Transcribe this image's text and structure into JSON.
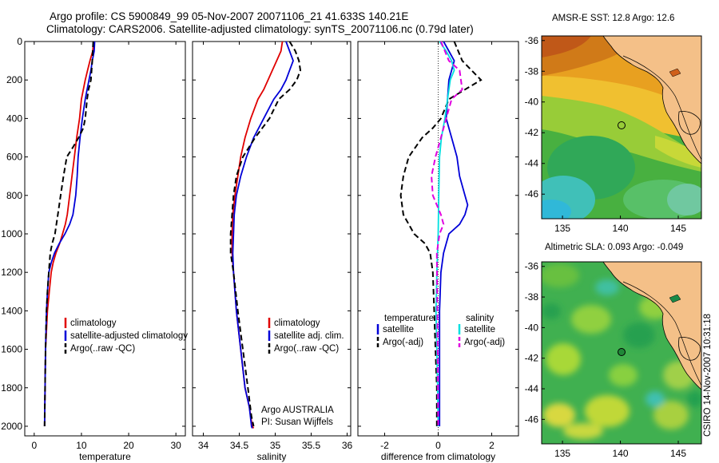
{
  "header": {
    "line1": "Argo profile: CS 5900849_99 05-Nov-2007 20071106_21 41.633S 140.21E",
    "line2": "Climatology: CARS2006. Satellite-adjusted climatology: synTS_20071106.nc (0.79d later)"
  },
  "colors": {
    "red": "#e00000",
    "blue": "#0000d8",
    "black": "#000000",
    "cyan": "#00e0e0",
    "magenta": "#e000e0"
  },
  "chart_data": [
    {
      "type": "line",
      "xlabel": "temperature",
      "xlim": [
        -2,
        32
      ],
      "ylim": [
        0,
        2050
      ],
      "xticks": [
        0,
        10,
        20,
        30
      ],
      "yticks": [
        0,
        200,
        400,
        600,
        800,
        1000,
        1200,
        1400,
        1600,
        1800,
        2000
      ],
      "legend": [
        "climatology",
        "satellite-adjusted climatology",
        "Argo(..raw -QC)"
      ],
      "series": [
        {
          "name": "climatology",
          "color": "red",
          "dash": false,
          "x": [
            12.6,
            12.4,
            11.8,
            11.3,
            10.8,
            10.4,
            10.0,
            9.6,
            9.0,
            8.5,
            8.0,
            7.5,
            7.0,
            6.6,
            6.0,
            5.4,
            4.6,
            4.0,
            3.6,
            3.2,
            2.8,
            2.6,
            2.4,
            2.3,
            2.2
          ],
          "y": [
            0,
            50,
            100,
            150,
            200,
            250,
            300,
            400,
            500,
            600,
            700,
            800,
            900,
            950,
            1000,
            1050,
            1100,
            1150,
            1200,
            1300,
            1400,
            1500,
            1600,
            1800,
            2000
          ]
        },
        {
          "name": "satellite-adjusted climatology",
          "color": "blue",
          "dash": false,
          "x": [
            12.8,
            12.7,
            12.3,
            12.0,
            11.6,
            11.2,
            10.8,
            10.2,
            9.7,
            9.3,
            9.1,
            8.8,
            8.2,
            7.5,
            6.5,
            5.3,
            4.3,
            3.6,
            3.1,
            2.8,
            2.6,
            2.4,
            2.3,
            2.2
          ],
          "y": [
            0,
            50,
            100,
            150,
            200,
            250,
            300,
            400,
            500,
            600,
            700,
            800,
            900,
            950,
            1000,
            1050,
            1100,
            1150,
            1200,
            1300,
            1400,
            1600,
            1800,
            2000
          ]
        },
        {
          "name": "Argo(..raw -QC)",
          "color": "black",
          "dash": true,
          "x": [
            12.5,
            12.3,
            12.0,
            11.5,
            11.2,
            10.8,
            10.4,
            9.4,
            8.2,
            6.9,
            6.2,
            5.6,
            5.0,
            4.4,
            3.8,
            3.4,
            3.1,
            2.8,
            2.6,
            2.4,
            2.3,
            2.2
          ],
          "y": [
            0,
            100,
            200,
            250,
            300,
            400,
            450,
            500,
            550,
            600,
            700,
            800,
            900,
            1000,
            1050,
            1100,
            1200,
            1300,
            1400,
            1600,
            1800,
            2000
          ]
        }
      ],
      "notes": []
    },
    {
      "type": "line",
      "xlabel": "salinity",
      "xlim": [
        33.85,
        36.05
      ],
      "ylim": [
        0,
        2050
      ],
      "xticks": [
        34,
        34.5,
        35,
        35.5,
        36
      ],
      "xtick_labels": [
        "34",
        "34.5",
        "35",
        "35.5",
        "36"
      ],
      "legend": [
        "climatology",
        "satellite adj. clim.",
        "Argo(..raw -QC)"
      ],
      "series": [
        {
          "name": "climatology",
          "color": "red",
          "dash": false,
          "x": [
            35.1,
            35.08,
            35.02,
            34.96,
            34.9,
            34.84,
            34.76,
            34.66,
            34.58,
            34.52,
            34.48,
            34.44,
            34.41,
            34.4,
            34.4,
            34.42,
            34.46,
            34.52,
            34.58,
            34.64,
            34.68,
            34.7
          ],
          "y": [
            0,
            50,
            100,
            150,
            200,
            250,
            300,
            400,
            500,
            600,
            700,
            800,
            900,
            1000,
            1100,
            1200,
            1400,
            1600,
            1800,
            1900,
            2000,
            2010
          ]
        },
        {
          "name": "satellite adj. clim.",
          "color": "blue",
          "dash": false,
          "x": [
            35.15,
            35.2,
            35.25,
            35.2,
            35.15,
            35.08,
            34.98,
            34.84,
            34.7,
            34.6,
            34.52,
            34.46,
            34.43,
            34.42,
            34.41,
            34.42,
            34.46,
            34.52,
            34.58,
            34.64,
            34.67,
            34.68
          ],
          "y": [
            0,
            50,
            100,
            150,
            200,
            250,
            300,
            400,
            500,
            600,
            700,
            800,
            900,
            1000,
            1100,
            1200,
            1400,
            1600,
            1800,
            1900,
            2000,
            2010
          ]
        },
        {
          "name": "Argo(..raw -QC)",
          "color": "black",
          "dash": true,
          "x": [
            35.2,
            35.28,
            35.33,
            35.35,
            35.3,
            35.2,
            35.05,
            34.92,
            34.72,
            34.55,
            34.46,
            34.42,
            34.4,
            34.38,
            34.38,
            34.42,
            34.48,
            34.55,
            34.62,
            34.67,
            34.7
          ],
          "y": [
            0,
            50,
            100,
            150,
            200,
            250,
            300,
            400,
            500,
            600,
            700,
            800,
            900,
            1000,
            1100,
            1200,
            1400,
            1600,
            1800,
            1950,
            2000
          ]
        }
      ],
      "notes": [
        "Argo AUSTRALIA",
        "PI: Susan Wijffels"
      ]
    },
    {
      "type": "line",
      "xlabel": "difference from climatology",
      "xlim": [
        -3,
        3
      ],
      "ylim": [
        0,
        2050
      ],
      "xticks": [
        -2,
        0,
        2
      ],
      "legend_headers": [
        "temperature",
        "salinity"
      ],
      "legend": [
        "satellite",
        "Argo(-adj)",
        "satellite",
        "Argo(-adj)"
      ],
      "series": [
        {
          "name": "satellite",
          "group": "temperature",
          "color": "blue",
          "dash": false,
          "x": [
            0.2,
            0.4,
            0.6,
            0.5,
            0.4,
            0.35,
            0.3,
            0.5,
            0.7,
            0.8,
            1.0,
            1.1,
            1.0,
            0.8,
            0.4,
            0.2,
            0.1,
            0.05,
            0.05,
            0.05,
            0.05
          ],
          "y": [
            0,
            50,
            100,
            150,
            200,
            300,
            400,
            500,
            600,
            700,
            800,
            850,
            900,
            950,
            1000,
            1100,
            1200,
            1400,
            1600,
            1800,
            2000
          ]
        },
        {
          "name": "Argo(-adj)",
          "group": "temperature",
          "color": "black",
          "dash": true,
          "x": [
            0.6,
            0.9,
            1.6,
            1.0,
            0.4,
            0.1,
            -0.2,
            -0.6,
            -1.1,
            -1.3,
            -1.4,
            -1.3,
            -0.9,
            -0.5,
            -0.3,
            -0.2,
            -0.15,
            -0.1,
            -0.05,
            -0.05
          ],
          "y": [
            0,
            100,
            200,
            250,
            300,
            400,
            450,
            500,
            600,
            700,
            800,
            900,
            1000,
            1050,
            1100,
            1200,
            1400,
            1600,
            1800,
            2000
          ]
        },
        {
          "name": "satellite",
          "group": "salinity",
          "color": "cyan",
          "dash": false,
          "x": [
            0.05,
            0.3,
            0.5,
            0.6,
            0.45,
            0.35,
            0.25,
            0.12,
            0.05,
            0.02,
            0.0,
            -0.05,
            -0.08,
            -0.05,
            -0.02,
            0.0
          ],
          "y": [
            0,
            50,
            100,
            150,
            200,
            300,
            400,
            500,
            600,
            800,
            1000,
            1200,
            1400,
            1600,
            1800,
            2000
          ]
        },
        {
          "name": "Argo(-adj)",
          "group": "salinity",
          "color": "magenta",
          "dash": true,
          "x": [
            0.1,
            0.4,
            0.8,
            0.9,
            0.5,
            0.3,
            0.1,
            -0.1,
            -0.25,
            -0.2,
            0.1,
            0.2,
            0.05,
            -0.05,
            0.0
          ],
          "y": [
            0,
            100,
            150,
            250,
            300,
            400,
            500,
            600,
            700,
            800,
            900,
            950,
            1000,
            1100,
            2000
          ]
        }
      ],
      "notes": []
    }
  ],
  "maps": [
    {
      "title": "AMSR-E SST: 12.8 Argo: 12.6",
      "xticks": [
        135,
        140,
        145
      ],
      "yticks": [
        -36,
        -38,
        -40,
        -42,
        -44,
        -46
      ],
      "marker": {
        "lon": 140.21,
        "lat": -41.633
      }
    },
    {
      "title": "Altimetric SLA: 0.093 Argo: -0.049",
      "xticks": [
        135,
        140,
        145
      ],
      "yticks": [
        -36,
        -38,
        -40,
        -42,
        -44,
        -46
      ],
      "marker": {
        "lon": 140.21,
        "lat": -41.633
      }
    }
  ],
  "footer_vertical": "CSIRO 14-Nov-2007 10:31:18"
}
